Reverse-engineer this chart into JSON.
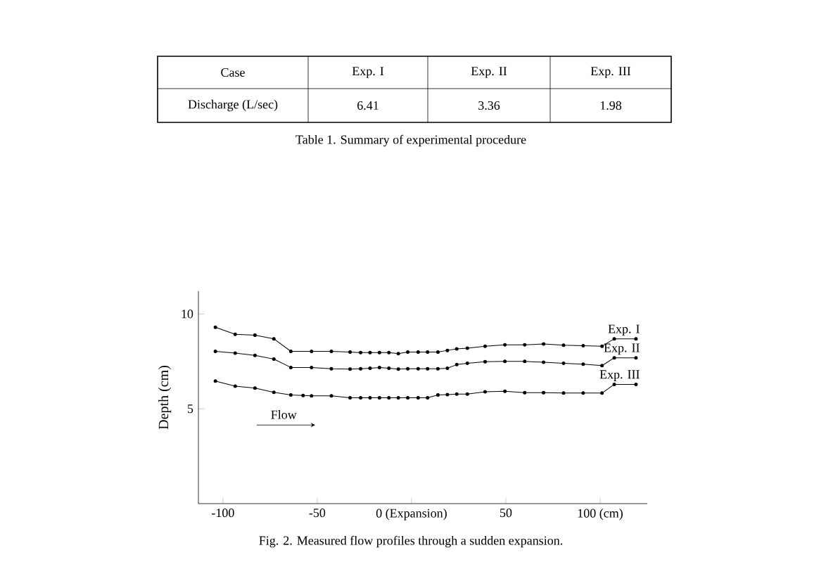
{
  "chart_data": [
    {
      "type": "other",
      "title": "Table 1. Summary of experimental procedure",
      "xlabel": "Case",
      "ylabel": "Discharge (L/sec)",
      "categories": [
        "Exp. I",
        "Exp. II",
        "Exp. III"
      ],
      "values": [
        6.41,
        3.36,
        1.98
      ],
      "data_labels": true
    },
    {
      "type": "line",
      "ylabel": "Depth (cm)",
      "xlim": [
        -113,
        125
      ],
      "ylim": [
        0,
        11.2
      ],
      "xticks": [
        -100,
        -50,
        {
          "value": 0,
          "label": "0 (Expansion)"
        },
        50,
        {
          "value": 100,
          "label": "100 (cm)"
        }
      ],
      "yticks": [
        5,
        10
      ],
      "marker": "circle",
      "line_style": "solid",
      "grid": false,
      "legend": false,
      "x": [
        -104,
        -93.5,
        -83,
        -73,
        -64,
        -53,
        -42.5,
        -32.6,
        -27,
        -22,
        -17,
        -12,
        -7,
        -2,
        3.5,
        8.5,
        14,
        19,
        24,
        29.6,
        39,
        49.5,
        60,
        70,
        80.6,
        91,
        101,
        107.5,
        119
      ],
      "series": [
        {
          "name": "Exp. I",
          "color": "#000000",
          "values": [
            9.3,
            8.93,
            8.88,
            8.69,
            8.03,
            8.03,
            8.03,
            7.99,
            7.96,
            7.96,
            7.96,
            7.96,
            7.91,
            7.99,
            7.99,
            7.99,
            7.99,
            8.08,
            8.16,
            8.2,
            8.3,
            8.37,
            8.37,
            8.42,
            8.35,
            8.33,
            8.3,
            8.69,
            8.69
          ]
        },
        {
          "name": "Exp. II",
          "color": "#000000",
          "values": [
            8.03,
            7.94,
            7.82,
            7.62,
            7.18,
            7.18,
            7.11,
            7.09,
            7.11,
            7.14,
            7.18,
            7.14,
            7.09,
            7.11,
            7.11,
            7.11,
            7.11,
            7.14,
            7.33,
            7.4,
            7.48,
            7.5,
            7.5,
            7.45,
            7.4,
            7.35,
            7.28,
            7.69,
            7.69
          ]
        },
        {
          "name": "Exp. III",
          "color": "#000000",
          "x": [
            -104,
            -93.5,
            -83,
            -73,
            -64,
            -57.5,
            -53,
            -42.5,
            -32.6,
            -27,
            -22,
            -17,
            -12,
            -7,
            -2,
            3.5,
            8.5,
            14,
            19,
            24,
            29.6,
            39,
            49.5,
            60,
            70,
            80.6,
            91,
            101,
            107.5,
            119
          ],
          "values": [
            6.46,
            6.19,
            6.09,
            5.87,
            5.73,
            5.7,
            5.68,
            5.68,
            5.58,
            5.58,
            5.58,
            5.58,
            5.58,
            5.58,
            5.58,
            5.58,
            5.58,
            5.73,
            5.75,
            5.78,
            5.78,
            5.9,
            5.92,
            5.85,
            5.85,
            5.83,
            5.83,
            5.83,
            6.29,
            6.29
          ]
        }
      ],
      "annotations": [
        "Flow",
        "Fig. 2. Measured flow profiles through a sudden expansion."
      ]
    }
  ]
}
